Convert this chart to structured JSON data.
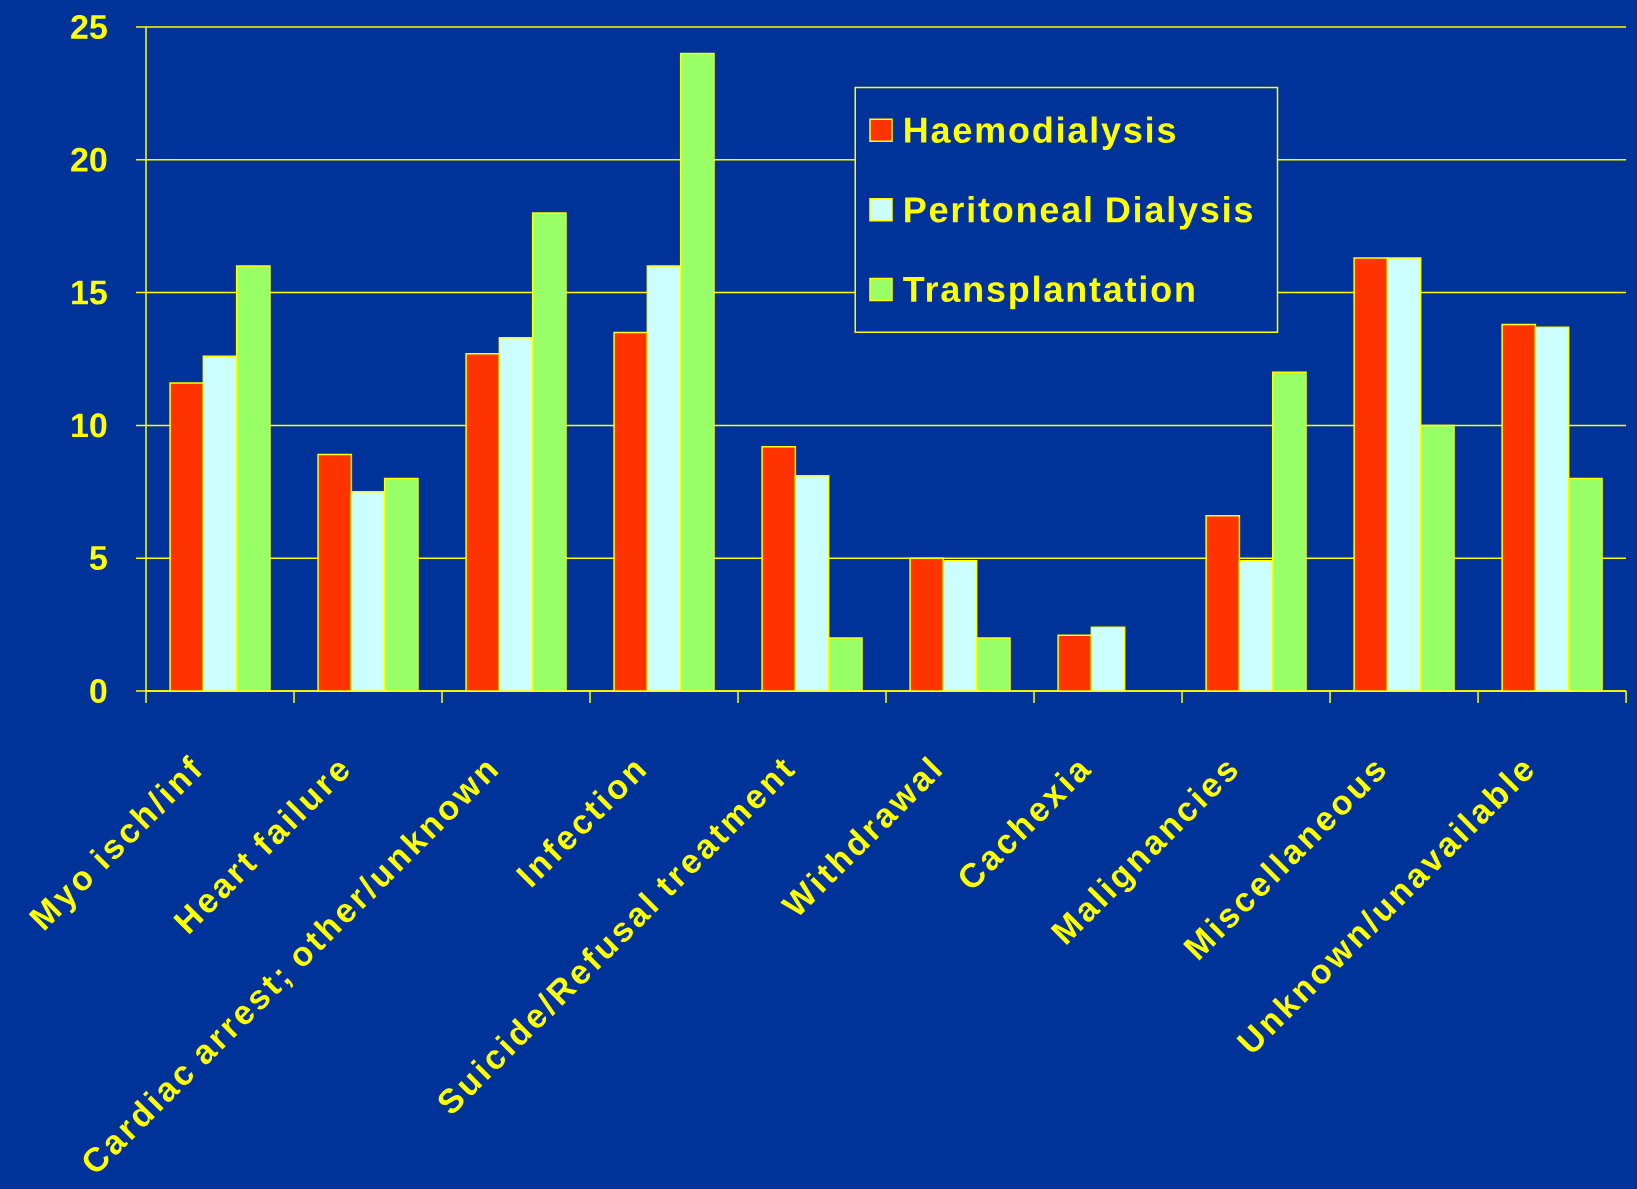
{
  "chart_data": {
    "type": "bar",
    "categories": [
      "Myo isch/inf",
      "Heart failure",
      "Cardiac arrest; other/unknown",
      "Infection",
      "Suicide/Refusal treatment",
      "Withdrawal",
      "Cachexia",
      "Malignancies",
      "Miscellaneous",
      "Unknown/unavailable"
    ],
    "series": [
      {
        "name": "Haemodialysis",
        "color": "#ff3300",
        "values": [
          11.6,
          8.9,
          12.7,
          13.5,
          9.2,
          5.0,
          2.1,
          6.6,
          16.3,
          13.8
        ]
      },
      {
        "name": "Peritoneal Dialysis",
        "color": "#ccffff",
        "values": [
          12.6,
          7.5,
          13.3,
          16.0,
          8.1,
          4.9,
          2.4,
          4.9,
          16.3,
          13.7
        ]
      },
      {
        "name": "Transplantation",
        "color": "#99ff66",
        "values": [
          16.0,
          8.0,
          18.0,
          24.0,
          2.0,
          2.0,
          null,
          12.0,
          10.0,
          8.0
        ]
      }
    ],
    "ylim": [
      0,
      25
    ],
    "yticks": [
      0,
      5,
      10,
      15,
      20,
      25
    ],
    "grid": "y",
    "legend": "top right"
  }
}
